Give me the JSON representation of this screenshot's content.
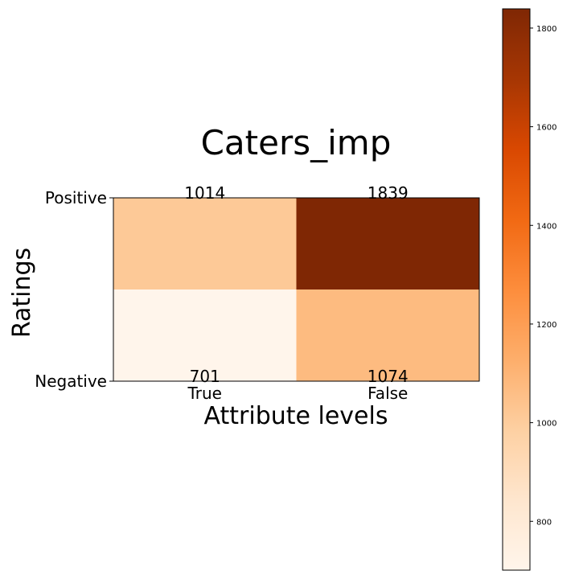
{
  "chart_data": {
    "type": "heatmap",
    "title": "Caters_imp",
    "xlabel": "Attribute levels",
    "ylabel": "Ratings",
    "x_categories": [
      "True",
      "False"
    ],
    "y_categories": [
      "Positive",
      "Negative"
    ],
    "values": [
      [
        1014,
        1839
      ],
      [
        701,
        1074
      ]
    ],
    "colormap": "Oranges",
    "colorbar": {
      "range": [
        701,
        1839
      ],
      "ticks": [
        800,
        1000,
        1200,
        1400,
        1600,
        1800
      ]
    },
    "grid": false
  }
}
